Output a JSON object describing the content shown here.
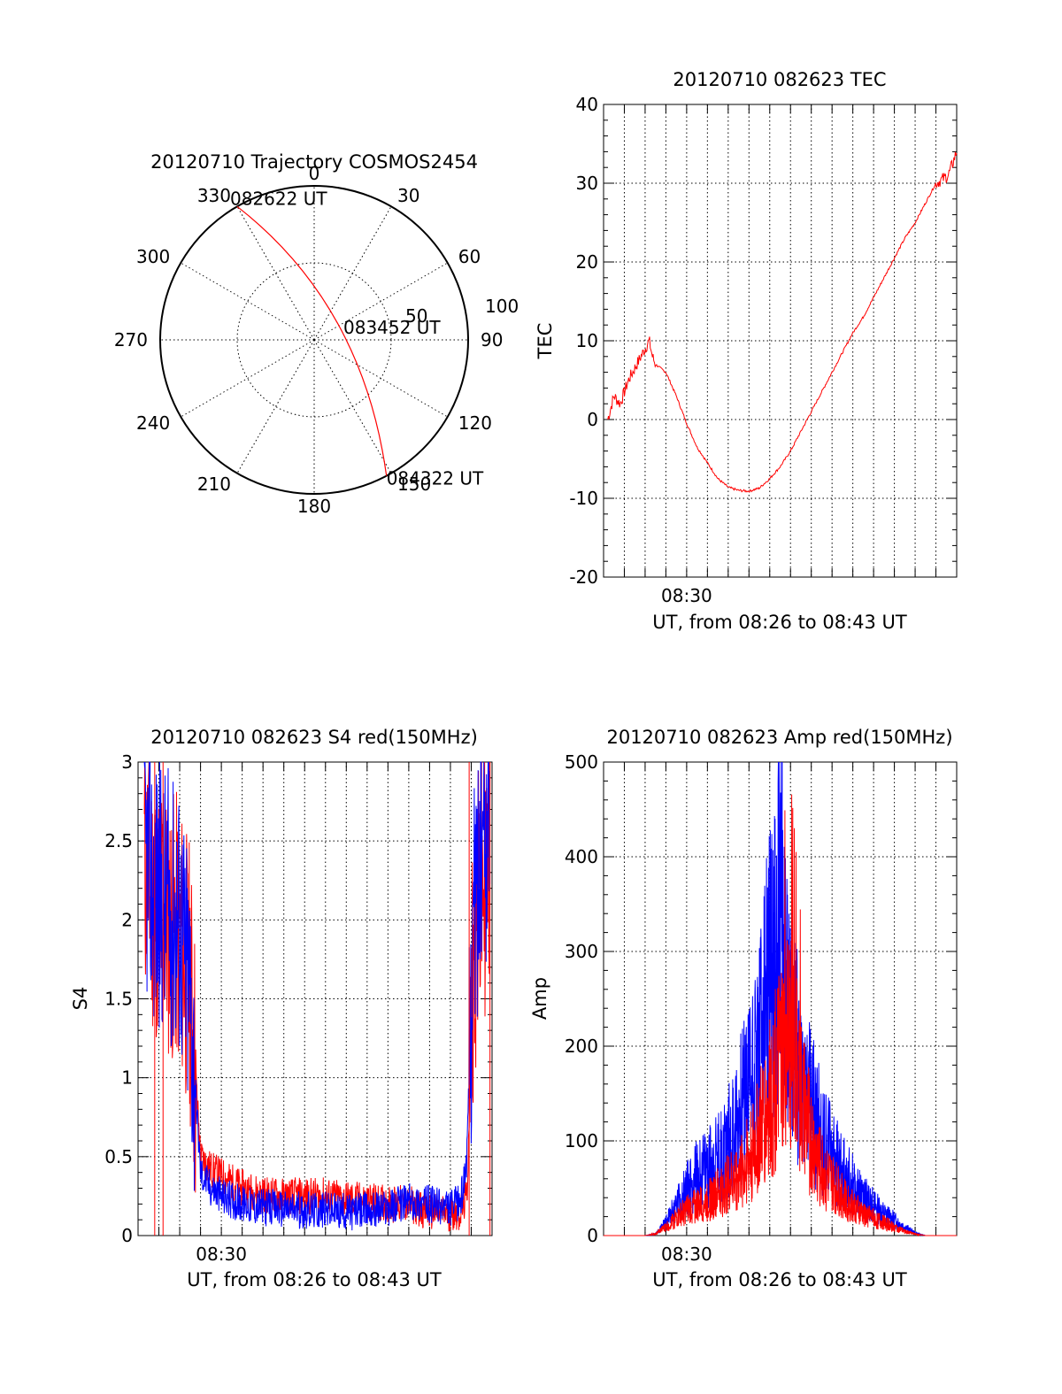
{
  "colors": {
    "red": "#ff0000",
    "blue": "#0000ff"
  },
  "chart_data": [
    {
      "id": "trajectory",
      "type": "polar",
      "title": "20120710 Trajectory COSMOS2454",
      "angle_labels": [
        "0",
        "30",
        "60",
        "90",
        "120",
        "150",
        "180",
        "210",
        "240",
        "270",
        "300",
        "330"
      ],
      "radial_labels": [
        "50",
        "100"
      ],
      "radial_max": 100,
      "points": [
        {
          "azimuth": 330,
          "elevation_radius": 100,
          "label": "082622 UT"
        },
        {
          "azimuth": 60,
          "elevation_radius": 20,
          "label": "083452 UT"
        },
        {
          "azimuth": 152,
          "elevation_radius": 100,
          "label": "084322 UT"
        }
      ],
      "track": [
        [
          330,
          100
        ],
        [
          337,
          75
        ],
        [
          350,
          50
        ],
        [
          20,
          22
        ],
        [
          90,
          14
        ],
        [
          130,
          45
        ],
        [
          145,
          75
        ],
        [
          152,
          100
        ]
      ],
      "series_color": "#ff0000",
      "grid": true
    },
    {
      "id": "tec",
      "type": "line",
      "title": "20120710 082623 TEC",
      "ylabel": "TEC",
      "xlabel": "UT, from 08:26 to 08:43 UT",
      "x_tick_labels": [
        "08:30"
      ],
      "x_tick_label_at": 4,
      "xlim": [
        0,
        17
      ],
      "ylim": [
        -20,
        40
      ],
      "y_ticks": [
        -20,
        -10,
        0,
        10,
        20,
        30,
        40
      ],
      "grid": true,
      "series_color": "#ff0000",
      "x": [
        0.2,
        0.5,
        0.8,
        1.2,
        1.6,
        2.0,
        2.2,
        2.35,
        2.5,
        3.0,
        3.5,
        4.0,
        4.5,
        5.0,
        5.5,
        6.0,
        6.5,
        7.0,
        7.5,
        8.0,
        8.5,
        9.0,
        9.5,
        10.0,
        10.5,
        11.0,
        11.5,
        12.0,
        12.5,
        13.0,
        13.5,
        14.0,
        14.5,
        15.0,
        15.5,
        16.0,
        16.3,
        16.6,
        17.0
      ],
      "y": [
        0,
        3,
        2,
        5,
        7,
        9,
        10,
        8,
        7,
        6,
        3,
        -0.5,
        -3.5,
        -5.5,
        -7.5,
        -8.6,
        -9,
        -9.1,
        -8.7,
        -7.5,
        -6,
        -4,
        -1.5,
        1,
        3.5,
        6,
        8.5,
        11,
        13,
        15.5,
        18,
        20.5,
        23,
        25,
        27.5,
        30,
        30.5,
        31,
        34
      ]
    },
    {
      "id": "s4",
      "type": "line",
      "title": "20120710 082623 S4 red(150MHz)",
      "ylabel": "S4",
      "xlabel": "UT, from 08:26 to 08:43 UT",
      "x_tick_labels": [
        "08:30"
      ],
      "x_tick_label_at": 4,
      "xlim": [
        0,
        17
      ],
      "ylim": [
        0,
        3
      ],
      "y_ticks": [
        0,
        0.5,
        1,
        1.5,
        2,
        2.5,
        3
      ],
      "y_tick_labels": [
        "0",
        "0.5",
        "1",
        "1.5",
        "2",
        "2.5",
        "3"
      ],
      "grid": true,
      "series": [
        {
          "color": "#ff0000",
          "x": [
            0.3,
            0.8,
            1.4,
            2.0,
            2.5,
            3.0,
            3.5,
            4.0,
            5.0,
            6.0,
            7.0,
            8.0,
            9.0,
            10.0,
            11.0,
            12.0,
            13.0,
            14.0,
            15.0,
            15.5,
            15.8,
            16.1,
            16.4,
            16.7,
            17.0
          ],
          "y": [
            2.4,
            2.1,
            2.0,
            1.9,
            1.6,
            0.5,
            0.42,
            0.38,
            0.3,
            0.26,
            0.25,
            0.25,
            0.25,
            0.23,
            0.22,
            0.2,
            0.2,
            0.15,
            0.14,
            0.15,
            0.25,
            1.8,
            2.1,
            2.3,
            2.4
          ]
        },
        {
          "color": "#0000ff",
          "x": [
            0.3,
            0.8,
            1.4,
            2.0,
            2.5,
            3.0,
            3.5,
            4.0,
            5.0,
            6.0,
            7.0,
            8.0,
            9.0,
            10.0,
            11.0,
            12.0,
            13.0,
            14.0,
            15.0,
            15.5,
            15.8,
            16.1,
            16.4,
            16.7,
            17.0
          ],
          "y": [
            2.4,
            2.2,
            2.1,
            2.0,
            1.5,
            0.4,
            0.3,
            0.25,
            0.2,
            0.18,
            0.17,
            0.16,
            0.16,
            0.15,
            0.16,
            0.18,
            0.22,
            0.2,
            0.17,
            0.22,
            0.5,
            2.0,
            2.4,
            2.6,
            2.7
          ]
        }
      ]
    },
    {
      "id": "amp",
      "type": "line",
      "title": "20120710 082623 Amp red(150MHz)",
      "ylabel": "Amp",
      "xlabel": "UT, from 08:26 to 08:43 UT",
      "x_tick_labels": [
        "08:30"
      ],
      "x_tick_label_at": 4,
      "xlim": [
        0,
        17
      ],
      "ylim": [
        0,
        500
      ],
      "y_ticks": [
        0,
        100,
        200,
        300,
        400,
        500
      ],
      "grid": true,
      "series": [
        {
          "color": "#0000ff",
          "x": [
            0,
            1,
            2,
            2.5,
            3,
            3.5,
            4,
            4.5,
            5,
            5.5,
            6,
            6.5,
            7,
            7.5,
            8,
            8.5,
            9,
            9.5,
            10,
            10.5,
            11,
            11.5,
            12,
            12.5,
            13,
            13.5,
            14,
            14.5,
            15,
            15.5,
            16,
            17
          ],
          "y": [
            0,
            0,
            0,
            2,
            15,
            35,
            55,
            70,
            80,
            90,
            110,
            140,
            180,
            220,
            300,
            380,
            260,
            180,
            150,
            120,
            95,
            75,
            60,
            45,
            35,
            25,
            18,
            10,
            3,
            0,
            0,
            0
          ]
        },
        {
          "color": "#ff0000",
          "x": [
            0,
            1,
            2,
            2.5,
            3,
            3.5,
            4,
            4.5,
            5,
            5.5,
            6,
            6.5,
            7,
            7.5,
            8,
            8.5,
            9,
            9.5,
            10,
            10.5,
            11,
            11.5,
            12,
            12.5,
            13,
            13.5,
            14,
            14.5,
            15,
            15.5,
            16,
            17
          ],
          "y": [
            0,
            0,
            0,
            2,
            10,
            20,
            30,
            35,
            40,
            50,
            60,
            70,
            90,
            120,
            160,
            200,
            230,
            160,
            110,
            80,
            60,
            45,
            35,
            25,
            20,
            15,
            10,
            5,
            2,
            0,
            0,
            0
          ]
        }
      ]
    }
  ]
}
